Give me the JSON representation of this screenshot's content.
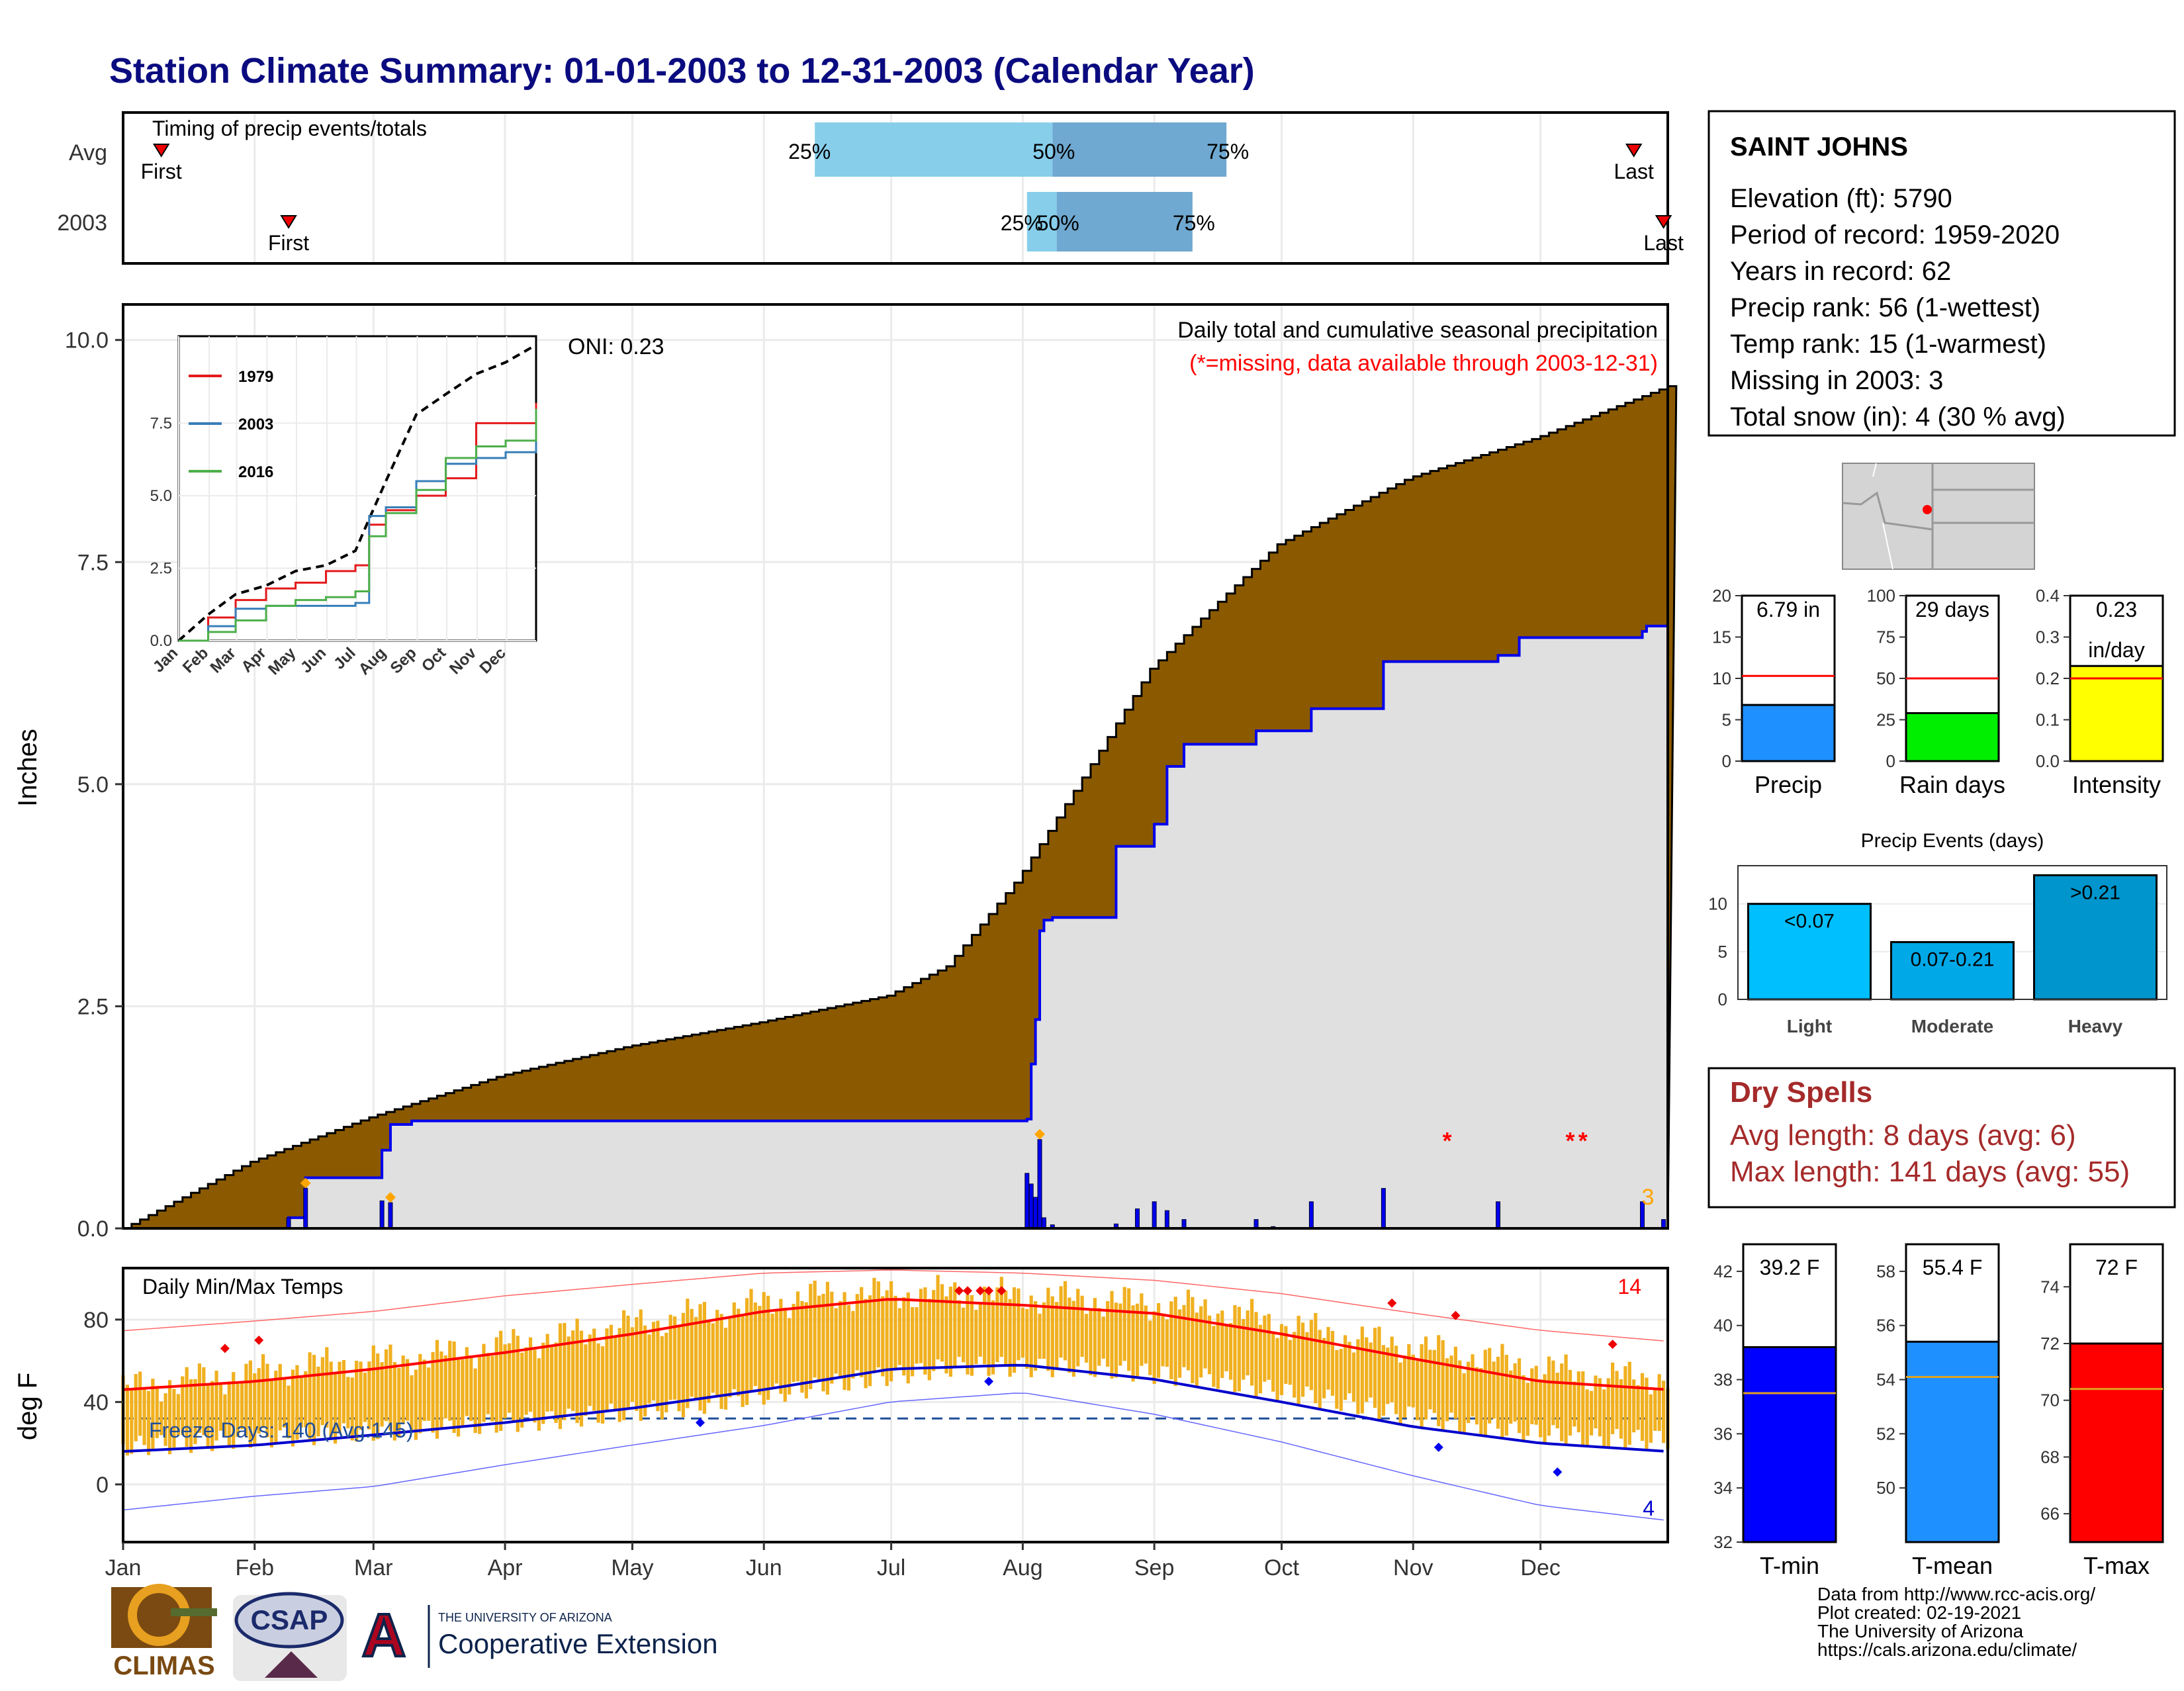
{
  "title": "Station Climate Summary: 01-01-2003 to 12-31-2003 (Calendar Year)",
  "timing_panel": {
    "label": "Timing of precip events/totals",
    "rows": [
      {
        "name": "Avg",
        "first_label": "First",
        "last_label": "Last",
        "first_day": 10,
        "last_day": 357,
        "p25_day": 164,
        "p50_day": 220,
        "p75_day": 261,
        "p25": "25%",
        "p50": "50%",
        "p75": "75%"
      },
      {
        "name": "2003",
        "first_label": "First",
        "last_label": "Last",
        "first_day": 40,
        "last_day": 364,
        "p25_day": 214,
        "p50_day": 221,
        "p75_day": 253,
        "p25": "25%",
        "p50": "50%",
        "p75": "75%"
      }
    ]
  },
  "station_box": {
    "name": "SAINT JOHNS",
    "lines": [
      "Elevation (ft): 5790",
      "Period of record: 1959-2020",
      "Years in record: 62",
      "Precip rank: 56 (1-wettest)",
      "Temp rank: 15 (1-warmest)",
      "Missing in 2003: 3",
      "Total snow (in): 4 (30 % avg)"
    ]
  },
  "precip_main": {
    "ylabel": "Inches",
    "annotation_1": "Daily total and cumulative seasonal precipitation",
    "annotation_2": "(*=missing, data available through 2003-12-31)",
    "oni": "ONI: 0.23",
    "missing_count": "3",
    "yticks": [
      "0.0",
      "2.5",
      "5.0",
      "7.5",
      "10.0"
    ],
    "colors": {
      "avg_fill": "#8B5A00",
      "obs_fill": "#e0e0e0",
      "obs_line": "#0000ee",
      "daily_bar": "#0000ee",
      "missing": "#ff0000"
    }
  },
  "inset": {
    "legend": [
      "1979",
      "2003",
      "2016"
    ],
    "colors": {
      "1979": "#e41a1c",
      "2003": "#377eb8",
      "2016": "#4daf4a"
    },
    "yticks": [
      "0.0",
      "2.5",
      "5.0",
      "7.5"
    ],
    "xticks": [
      "Jan",
      "Feb",
      "Mar",
      "Apr",
      "May",
      "Jun",
      "Jul",
      "Aug",
      "Sep",
      "Oct",
      "Nov",
      "Dec"
    ]
  },
  "temp_panel": {
    "ylabel": "deg F",
    "label": "Daily Min/Max Temps",
    "freeze_label": "Freeze Days: 140 (Avg:145)",
    "record_high_count": "14",
    "record_low_count": "4",
    "yticks": [
      "0",
      "40",
      "80"
    ],
    "colors": {
      "bar": "#f0b020",
      "avg_max": "#ff0000",
      "avg_min": "#0000cc",
      "freeze": "#1f4e99"
    }
  },
  "months": [
    "Jan",
    "Feb",
    "Mar",
    "Apr",
    "May",
    "Jun",
    "Jul",
    "Aug",
    "Sep",
    "Oct",
    "Nov",
    "Dec"
  ],
  "mini_bars": [
    {
      "label": "Precip",
      "value_label": "6.79 in",
      "value": 6.79,
      "avg": 10.3,
      "ymax": 20,
      "yticks": [
        "0",
        "5",
        "10",
        "15",
        "20"
      ],
      "color": "#1e90ff"
    },
    {
      "label": "Rain days",
      "value_label": "29 days",
      "value": 29,
      "avg": 50,
      "ymax": 100,
      "yticks": [
        "0",
        "25",
        "50",
        "75",
        "100"
      ],
      "color": "#00ee00"
    },
    {
      "label": "Intensity",
      "value_label": "0.23",
      "value_label_2": "in/day",
      "value": 0.23,
      "avg": 0.2,
      "ymax": 0.4,
      "yticks": [
        "0.0",
        "0.1",
        "0.2",
        "0.3",
        "0.4"
      ],
      "color": "#ffff00"
    }
  ],
  "events_chart": {
    "title": "Precip Events (days)",
    "categories": [
      "Light",
      "Moderate",
      "Heavy"
    ],
    "bar_labels": [
      "<0.07",
      "0.07-0.21",
      ">0.21"
    ],
    "values": [
      10,
      6,
      13
    ],
    "yticks": [
      "0",
      "5",
      "10"
    ],
    "colors": [
      "#00bfff",
      "#00a8e8",
      "#0095cc"
    ]
  },
  "dry_spells": {
    "title": "Dry Spells",
    "avg": "Avg length: 8 days (avg: 6)",
    "max": "Max length: 141 days (avg: 55)",
    "color": "#a52a2a"
  },
  "temp_bars": [
    {
      "label": "T-min",
      "value_label": "39.2 F",
      "value": 39.2,
      "avg": 37.5,
      "ymin": 32,
      "ymax": 43,
      "yticks": [
        "32",
        "34",
        "36",
        "38",
        "40",
        "42"
      ],
      "color": "#0000ff"
    },
    {
      "label": "T-mean",
      "value_label": "55.4 F",
      "value": 55.4,
      "avg": 54.1,
      "ymin": 48,
      "ymax": 59,
      "yticks": [
        "50",
        "52",
        "54",
        "56",
        "58"
      ],
      "color": "#1e90ff"
    },
    {
      "label": "T-max",
      "value_label": "72 F",
      "value": 72,
      "avg": 70.4,
      "ymin": 65,
      "ymax": 75.5,
      "yticks": [
        "66",
        "68",
        "70",
        "72",
        "74"
      ],
      "color": "#ff0000"
    }
  ],
  "footer": {
    "lines": [
      "Data from http://www.rcc-acis.org/",
      "Plot created: 02-19-2021",
      "The University of Arizona",
      "https://cals.arizona.edu/climate/"
    ],
    "logo_climas": "CLIMAS",
    "logo_csap": "CSAP",
    "logo_ua_small": "THE UNIVERSITY OF ARIZONA",
    "logo_ua_big": "Cooperative Extension"
  },
  "chart_data": [
    {
      "type": "area",
      "title": "Daily total and cumulative seasonal precipitation",
      "ylabel": "Inches",
      "ylim": [
        0,
        10.4
      ],
      "x_unit": "day of year",
      "series": [
        {
          "name": "",
          "x": [
            1,
            31,
            59,
            90,
            120,
            151,
            181,
            195,
            212,
            230,
            243,
            260,
            273,
            304,
            334,
            365
          ],
          "values": [
            0,
            0.75,
            1.25,
            1.72,
            2.05,
            2.32,
            2.62,
            2.95,
            3.95,
            5.3,
            6.3,
            7.1,
            7.7,
            8.45,
            8.9,
            9.48
          ]
        },
        {
          "name": "",
          "x": [
            1,
            40,
            44,
            62,
            64,
            69,
            214,
            215,
            216,
            217,
            218,
            220,
            235,
            244,
            247,
            251,
            268,
            281,
            298,
            325,
            330,
            359,
            360,
            365
          ],
          "values": [
            0,
            0.12,
            0.57,
            0.88,
            1.17,
            1.21,
            1.23,
            1.85,
            2.35,
            3.35,
            3.47,
            3.5,
            4.3,
            4.55,
            5.2,
            5.45,
            5.6,
            5.85,
            6.38,
            6.45,
            6.65,
            6.72,
            6.78,
            6.79
          ]
        }
      ],
      "daily_totals": [
        {
          "day": 40,
          "value": 0.12
        },
        {
          "day": 44,
          "value": 0.45
        },
        {
          "day": 62,
          "value": 0.31
        },
        {
          "day": 64,
          "value": 0.29
        },
        {
          "day": 214,
          "value": 0.62
        },
        {
          "day": 215,
          "value": 0.5
        },
        {
          "day": 216,
          "value": 0.35
        },
        {
          "day": 217,
          "value": 1.0
        },
        {
          "day": 218,
          "value": 0.12
        },
        {
          "day": 220,
          "value": 0.04
        },
        {
          "day": 235,
          "value": 0.05
        },
        {
          "day": 240,
          "value": 0.22
        },
        {
          "day": 244,
          "value": 0.3
        },
        {
          "day": 247,
          "value": 0.2
        },
        {
          "day": 251,
          "value": 0.1
        },
        {
          "day": 268,
          "value": 0.1
        },
        {
          "day": 272,
          "value": 0.02
        },
        {
          "day": 281,
          "value": 0.3
        },
        {
          "day": 298,
          "value": 0.45
        },
        {
          "day": 325,
          "value": 0.3
        },
        {
          "day": 359,
          "value": 0.3
        },
        {
          "day": 364,
          "value": 0.1
        }
      ],
      "missing_days": [
        313,
        342,
        345
      ]
    },
    {
      "type": "line",
      "title": "",
      "ylim": [
        0,
        10.5
      ],
      "x": [
        1,
        31,
        59,
        90,
        120,
        151,
        181,
        195,
        212,
        243,
        273,
        304,
        334,
        365
      ],
      "series": [
        {
          "name": "",
          "values": [
            0,
            0.9,
            1.6,
            1.9,
            2.4,
            2.6,
            3.1,
            4.2,
            5.5,
            7.8,
            8.5,
            9.2,
            9.6,
            10.2
          ]
        },
        {
          "name": "1979",
          "values": [
            0,
            0.8,
            1.4,
            1.8,
            2.0,
            2.4,
            2.6,
            4.0,
            4.5,
            5.0,
            5.6,
            7.5,
            7.5,
            8.2
          ]
        },
        {
          "name": "2003",
          "values": [
            0,
            0.5,
            1.1,
            1.2,
            1.2,
            1.2,
            1.3,
            4.3,
            4.6,
            5.5,
            6.1,
            6.3,
            6.5,
            7.0
          ]
        },
        {
          "name": "2016",
          "values": [
            0,
            0.3,
            0.7,
            1.2,
            1.4,
            1.5,
            1.7,
            3.6,
            4.4,
            5.2,
            6.3,
            6.7,
            6.9,
            8.0
          ]
        }
      ]
    },
    {
      "type": "line",
      "title": "Daily Min/Max Temps",
      "ylabel": "deg F",
      "ylim": [
        -28,
        105
      ],
      "x": [
        1,
        32,
        60,
        91,
        121,
        152,
        182,
        213,
        244,
        274,
        305,
        335,
        365
      ],
      "series": [
        {
          "name": "",
          "values": [
            46,
            50,
            56,
            64,
            73,
            84,
            90,
            87,
            83,
            73,
            61,
            50,
            46
          ]
        },
        {
          "name": "",
          "values": [
            16,
            19,
            24,
            30,
            37,
            46,
            56,
            58,
            51,
            40,
            28,
            20,
            16
          ]
        },
        {
          "name": "",
          "values": [
            72,
            77,
            82,
            90,
            96,
            102,
            104,
            103,
            100,
            94,
            85,
            77,
            72
          ]
        },
        {
          "name": "",
          "values": [
            -15,
            -8,
            -3,
            8,
            18,
            28,
            40,
            45,
            35,
            22,
            6,
            -8,
            -15
          ]
        }
      ],
      "obs_max_monthly": [
        50,
        58,
        62,
        72,
        82,
        92,
        93,
        90,
        85,
        72,
        62,
        52
      ],
      "obs_min_monthly": [
        20,
        24,
        27,
        32,
        38,
        48,
        57,
        57,
        51,
        40,
        28,
        22
      ],
      "freeze_line": 32
    }
  ]
}
